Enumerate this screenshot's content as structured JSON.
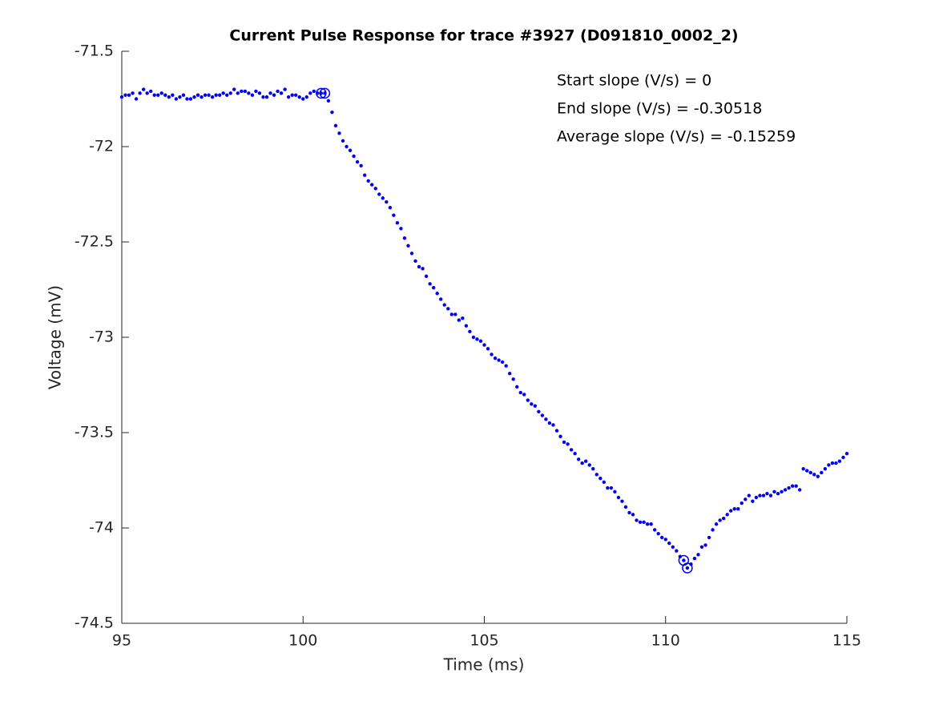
{
  "chart_data": {
    "type": "scatter",
    "title": "Current Pulse Response for trace #3927 (D091810_0002_2)",
    "xlabel": "Time (ms)",
    "ylabel": "Voltage (mV)",
    "annotations": [
      "Start slope (V/s) = 0",
      "End slope (V/s) = -0.30518",
      "Average slope (V/s) = -0.15259"
    ],
    "color": "#0000ff",
    "xlim": [
      95,
      115
    ],
    "xticks": [
      95,
      100,
      105,
      110,
      115
    ],
    "ylim": [
      -74.5,
      -71.5
    ],
    "yticks": [
      -74.5,
      -74,
      -73.5,
      -73,
      -72.5,
      -72,
      -71.5
    ],
    "x": [
      95.0,
      95.1,
      95.2,
      95.3,
      95.4,
      95.5,
      95.6,
      95.7,
      95.8,
      95.9,
      96.0,
      96.1,
      96.2,
      96.3,
      96.4,
      96.5,
      96.6,
      96.7,
      96.8,
      96.9,
      97.0,
      97.1,
      97.2,
      97.3,
      97.4,
      97.5,
      97.6,
      97.7,
      97.8,
      97.9,
      98.0,
      98.1,
      98.2,
      98.3,
      98.4,
      98.5,
      98.6,
      98.7,
      98.8,
      98.9,
      99.0,
      99.1,
      99.2,
      99.3,
      99.4,
      99.5,
      99.6,
      99.7,
      99.8,
      99.9,
      100.0,
      100.1,
      100.2,
      100.3,
      100.4,
      100.5,
      100.6,
      100.7,
      100.8,
      100.9,
      101.0,
      101.1,
      101.2,
      101.3,
      101.4,
      101.5,
      101.6,
      101.7,
      101.8,
      101.9,
      102.0,
      102.1,
      102.2,
      102.3,
      102.4,
      102.5,
      102.6,
      102.7,
      102.8,
      102.9,
      103.0,
      103.1,
      103.2,
      103.3,
      103.4,
      103.5,
      103.6,
      103.7,
      103.8,
      103.9,
      104.0,
      104.1,
      104.2,
      104.3,
      104.4,
      104.5,
      104.6,
      104.7,
      104.8,
      104.9,
      105.0,
      105.1,
      105.2,
      105.3,
      105.4,
      105.5,
      105.6,
      105.7,
      105.8,
      105.9,
      106.0,
      106.1,
      106.2,
      106.3,
      106.4,
      106.5,
      106.6,
      106.7,
      106.8,
      106.9,
      107.0,
      107.1,
      107.2,
      107.3,
      107.4,
      107.5,
      107.6,
      107.7,
      107.8,
      107.9,
      108.0,
      108.1,
      108.2,
      108.3,
      108.4,
      108.5,
      108.6,
      108.7,
      108.8,
      108.9,
      109.0,
      109.1,
      109.2,
      109.3,
      109.4,
      109.5,
      109.6,
      109.7,
      109.8,
      109.9,
      110.0,
      110.1,
      110.2,
      110.3,
      110.4,
      110.5,
      110.6,
      110.7,
      110.8,
      110.9,
      111.0,
      111.1,
      111.2,
      111.3,
      111.4,
      111.5,
      111.6,
      111.7,
      111.8,
      111.9,
      112.0,
      112.1,
      112.2,
      112.3,
      112.4,
      112.5,
      112.6,
      112.7,
      112.8,
      112.9,
      113.0,
      113.1,
      113.2,
      113.3,
      113.4,
      113.5,
      113.6,
      113.7,
      113.8,
      113.9,
      114.0,
      114.1,
      114.2,
      114.3,
      114.4,
      114.5,
      114.6,
      114.7,
      114.8,
      114.9,
      115.0
    ],
    "values": [
      -71.74,
      -71.73,
      -71.73,
      -71.72,
      -71.75,
      -71.72,
      -71.7,
      -71.72,
      -71.71,
      -71.73,
      -71.73,
      -71.72,
      -71.73,
      -71.74,
      -71.73,
      -71.75,
      -71.74,
      -71.73,
      -71.75,
      -71.75,
      -71.74,
      -71.73,
      -71.74,
      -71.73,
      -71.73,
      -71.74,
      -71.73,
      -71.73,
      -71.72,
      -71.73,
      -71.72,
      -71.7,
      -71.72,
      -71.71,
      -71.71,
      -71.72,
      -71.73,
      -71.71,
      -71.72,
      -71.74,
      -71.74,
      -71.72,
      -71.73,
      -71.71,
      -71.72,
      -71.7,
      -71.74,
      -71.73,
      -71.73,
      -71.74,
      -71.75,
      -71.74,
      -71.72,
      -71.71,
      -71.72,
      -71.72,
      -71.72,
      -71.76,
      -71.82,
      -71.89,
      -71.93,
      -71.97,
      -72.0,
      -72.02,
      -72.05,
      -72.08,
      -72.1,
      -72.15,
      -72.18,
      -72.2,
      -72.22,
      -72.25,
      -72.27,
      -72.29,
      -72.32,
      -72.36,
      -72.4,
      -72.43,
      -72.48,
      -72.52,
      -72.56,
      -72.6,
      -72.63,
      -72.64,
      -72.68,
      -72.72,
      -72.74,
      -72.77,
      -72.8,
      -72.83,
      -72.85,
      -72.88,
      -72.88,
      -72.91,
      -72.9,
      -72.94,
      -72.97,
      -73.0,
      -73.01,
      -73.02,
      -73.04,
      -73.06,
      -73.09,
      -73.11,
      -73.12,
      -73.13,
      -73.15,
      -73.19,
      -73.22,
      -73.26,
      -73.29,
      -73.3,
      -73.33,
      -73.35,
      -73.36,
      -73.39,
      -73.41,
      -73.43,
      -73.45,
      -73.46,
      -73.49,
      -73.52,
      -73.55,
      -73.56,
      -73.59,
      -73.61,
      -73.64,
      -73.66,
      -73.65,
      -73.67,
      -73.69,
      -73.72,
      -73.74,
      -73.76,
      -73.79,
      -73.79,
      -73.81,
      -73.84,
      -73.86,
      -73.89,
      -73.92,
      -73.93,
      -73.96,
      -73.97,
      -73.97,
      -73.98,
      -73.98,
      -74.01,
      -74.03,
      -74.05,
      -74.06,
      -74.08,
      -74.1,
      -74.12,
      -74.15,
      -74.17,
      -74.21,
      -74.19,
      -74.16,
      -74.14,
      -74.1,
      -74.09,
      -74.05,
      -74.01,
      -73.98,
      -73.96,
      -73.95,
      -73.93,
      -73.91,
      -73.9,
      -73.9,
      -73.87,
      -73.85,
      -73.83,
      -73.86,
      -73.84,
      -73.83,
      -73.83,
      -73.82,
      -73.83,
      -73.81,
      -73.82,
      -73.81,
      -73.8,
      -73.79,
      -73.78,
      -73.78,
      -73.8,
      -73.69,
      -73.7,
      -73.71,
      -73.72,
      -73.73,
      -73.71,
      -73.69,
      -73.67,
      -73.66,
      -73.66,
      -73.65,
      -73.63,
      -73.61
    ],
    "markers": {
      "x": [
        100.5,
        100.6,
        110.5,
        110.6
      ],
      "values": [
        -71.72,
        -71.72,
        -74.17,
        -74.21
      ]
    }
  }
}
